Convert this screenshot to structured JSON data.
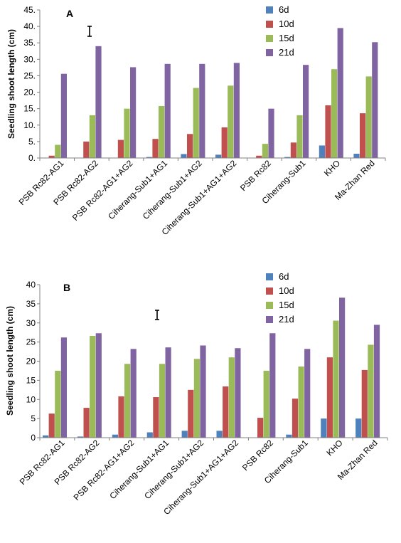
{
  "chart_data": [
    {
      "type": "bar",
      "panel_label": "A",
      "ylabel": "Seedling shoot length (cm)",
      "ylim": [
        0,
        45
      ],
      "yticks": [
        "0.",
        "5.",
        "10.",
        "15.",
        "20.",
        "25.",
        "30.",
        "35.",
        "40.",
        "45."
      ],
      "grid": false,
      "legend_position": "top-right",
      "categories": [
        "PSB Rc82-AG1",
        "PSB Rc82-AG2",
        "PSB Rc82-AG1+AG2",
        "Ciherang-Sub1+AG1",
        "Ciherang-Sub1+AG2",
        "Ciherang-Sub1+AG1+AG2",
        "PSB Rc82",
        "Ciherang-Sub1",
        "KHO",
        "Ma-Zhan Red"
      ],
      "series": [
        {
          "name": "6d",
          "color": "#4F81BD",
          "values": [
            0,
            0,
            0,
            0.3,
            1.2,
            1.0,
            0,
            0.3,
            3.8,
            1.3
          ]
        },
        {
          "name": "10d",
          "color": "#C0504D",
          "values": [
            0.7,
            5.0,
            5.5,
            5.8,
            7.3,
            9.3,
            0.7,
            4.7,
            16.0,
            13.6
          ]
        },
        {
          "name": "15d",
          "color": "#9BBB59",
          "values": [
            4.0,
            13.0,
            15.0,
            15.8,
            21.3,
            22.0,
            4.3,
            13.0,
            27.0,
            24.8
          ]
        },
        {
          "name": "21d",
          "color": "#8064A2",
          "values": [
            25.6,
            34.0,
            27.6,
            28.6,
            28.6,
            28.9,
            15.0,
            28.3,
            39.5,
            35.2
          ]
        }
      ]
    },
    {
      "type": "bar",
      "panel_label": "B",
      "ylabel": "Seedling shoot length (cm)",
      "ylim": [
        0,
        40
      ],
      "yticks": [
        "0",
        "5",
        "10",
        "15",
        "20",
        "25",
        "30",
        "35",
        "40"
      ],
      "grid": false,
      "legend_position": "top-right",
      "categories": [
        "PSB Rc82-AG1",
        "PSB Rc82-AG2",
        "PSB Rc82-AG1+AG2",
        "Ciherang-Sub1+AG1",
        "Ciherang-Sub1+AG2",
        "Ciherang-Sub1+AG1+AG2",
        "PSB Rc82",
        "Ciherang-Sub1",
        "KHO",
        "Ma-Zhan Red"
      ],
      "series": [
        {
          "name": "6d",
          "color": "#4F81BD",
          "values": [
            0.6,
            0.3,
            0.8,
            1.4,
            1.8,
            1.8,
            0,
            0.8,
            5.0,
            5.0
          ]
        },
        {
          "name": "10d",
          "color": "#C0504D",
          "values": [
            6.3,
            7.8,
            10.8,
            10.6,
            12.5,
            13.4,
            5.2,
            10.2,
            21.0,
            17.7
          ]
        },
        {
          "name": "15d",
          "color": "#9BBB59",
          "values": [
            17.5,
            26.6,
            19.3,
            19.3,
            20.6,
            21.0,
            17.5,
            18.6,
            30.6,
            24.3
          ]
        },
        {
          "name": "21d",
          "color": "#8064A2",
          "values": [
            26.2,
            27.3,
            23.2,
            23.6,
            24.1,
            23.4,
            27.3,
            23.2,
            36.6,
            29.5
          ]
        }
      ]
    }
  ]
}
